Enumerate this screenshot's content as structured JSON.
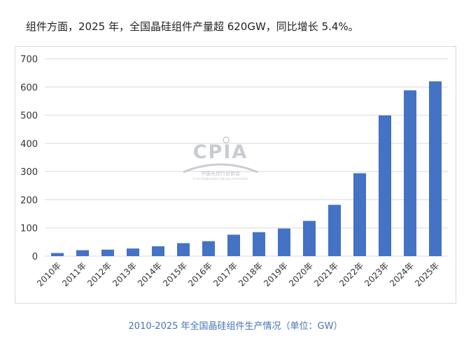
{
  "headline": "组件方面，2025 年，全国晶硅组件产量超 620GW，同比增长 5.4%。",
  "caption": "2010-2025 年全国晶硅组件生产情况（单位：GW）",
  "watermark": {
    "logo_text": "CPIA",
    "org_name": "中国光伏行业协会",
    "org_name_en": "China Photovoltaic Industry Association"
  },
  "colors": {
    "bar": "#4472c4",
    "grid": "#d9d9d9",
    "axis_text": "#333333",
    "caption": "#4a73b5"
  },
  "chart_data": {
    "type": "bar",
    "title": "",
    "xlabel": "",
    "ylabel": "",
    "categories": [
      "2010年",
      "2011年",
      "2012年",
      "2013年",
      "2014年",
      "2015年",
      "2016年",
      "2017年",
      "2018年",
      "2019年",
      "2020年",
      "2021年",
      "2022年",
      "2023年",
      "2024年",
      "2025年"
    ],
    "values": [
      11,
      21,
      23,
      27,
      35,
      46,
      53,
      76,
      85,
      98,
      125,
      182,
      294,
      499,
      588,
      620
    ],
    "ylim": [
      0,
      700
    ],
    "yticks": [
      0,
      100,
      200,
      300,
      400,
      500,
      600,
      700
    ],
    "grid": true,
    "legend": "none"
  }
}
